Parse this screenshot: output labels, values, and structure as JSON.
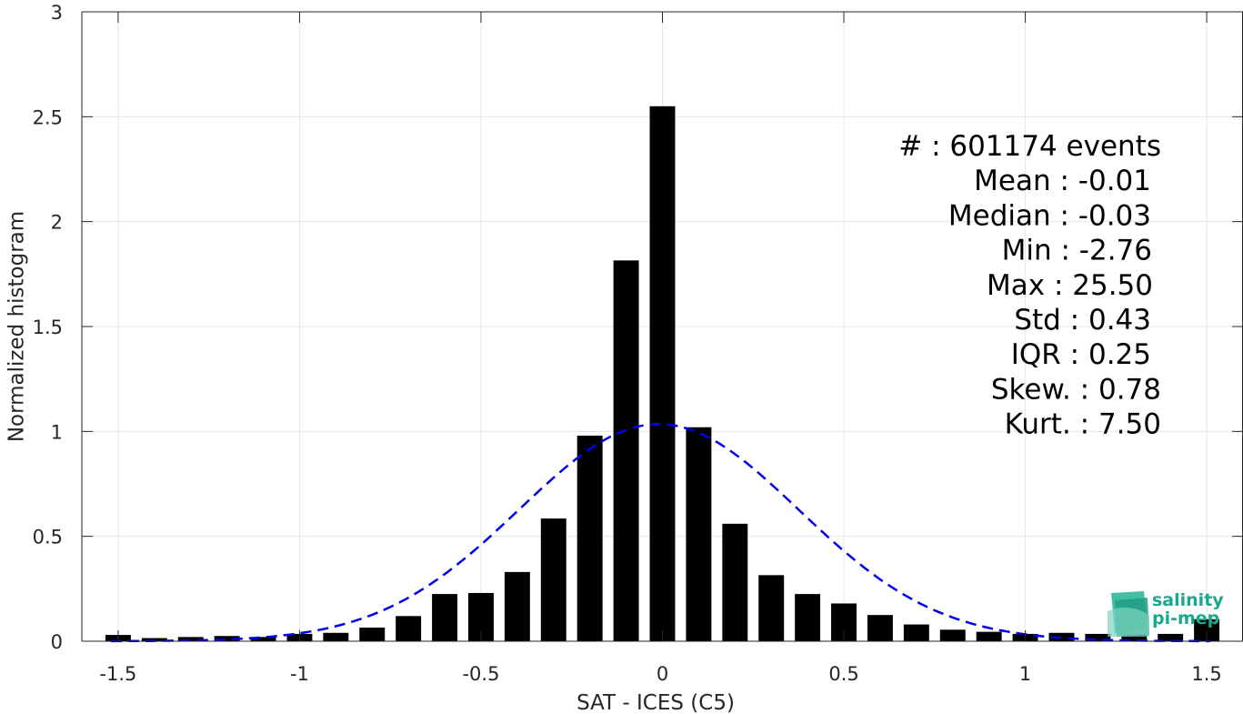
{
  "colors": {
    "bars": "#000000",
    "fit_curve": "#0000ee",
    "grid": "#e6e6e6",
    "axis": "#262626",
    "logo": "#1aa88f"
  },
  "chart_data": {
    "type": "bar",
    "xlabel": "SAT - ICES (C5)",
    "ylabel": "Normalized histogram",
    "xlim": [
      -1.6,
      1.6
    ],
    "ylim": [
      0,
      3
    ],
    "grid": true,
    "x_ticks": [
      -1.5,
      -1,
      -0.5,
      0,
      0.5,
      1,
      1.5
    ],
    "x_tick_labels": [
      "-1.5",
      "-1",
      "-0.5",
      "0",
      "0.5",
      "1",
      "1.5"
    ],
    "y_ticks": [
      0,
      0.5,
      1,
      1.5,
      2,
      2.5,
      3
    ],
    "y_tick_labels": [
      "0",
      "0.5",
      "1",
      "1.5",
      "2",
      "2.5",
      "3"
    ],
    "bins": [
      -1.5,
      -1.4,
      -1.3,
      -1.2,
      -1.1,
      -1.0,
      -0.9,
      -0.8,
      -0.7,
      -0.6,
      -0.5,
      -0.4,
      -0.3,
      -0.2,
      -0.1,
      0.0,
      0.1,
      0.2,
      0.3,
      0.4,
      0.5,
      0.6,
      0.7,
      0.8,
      0.9,
      1.0,
      1.1,
      1.2,
      1.3,
      1.4,
      1.5
    ],
    "values": [
      0.03,
      0.015,
      0.02,
      0.025,
      0.02,
      0.035,
      0.04,
      0.065,
      0.12,
      0.225,
      0.23,
      0.33,
      0.585,
      0.98,
      1.815,
      2.55,
      1.02,
      0.56,
      0.315,
      0.225,
      0.18,
      0.125,
      0.08,
      0.055,
      0.045,
      0.035,
      0.04,
      0.035,
      0.035,
      0.035,
      0.105
    ],
    "fit_curve": {
      "style": "dashed",
      "mean": -0.01,
      "std": 0.385,
      "peak": 1.035
    },
    "stats_lines": [
      "#  : 601174 events",
      "Mean : -0.01",
      "Median : -0.03",
      "Min : -2.76",
      "Max : 25.50",
      "Std : 0.43",
      "IQR : 0.25",
      "Skew. : 0.78",
      "Kurt. : 7.50"
    ]
  },
  "logo": {
    "line1": "salinity",
    "line2": "pi-mep"
  }
}
